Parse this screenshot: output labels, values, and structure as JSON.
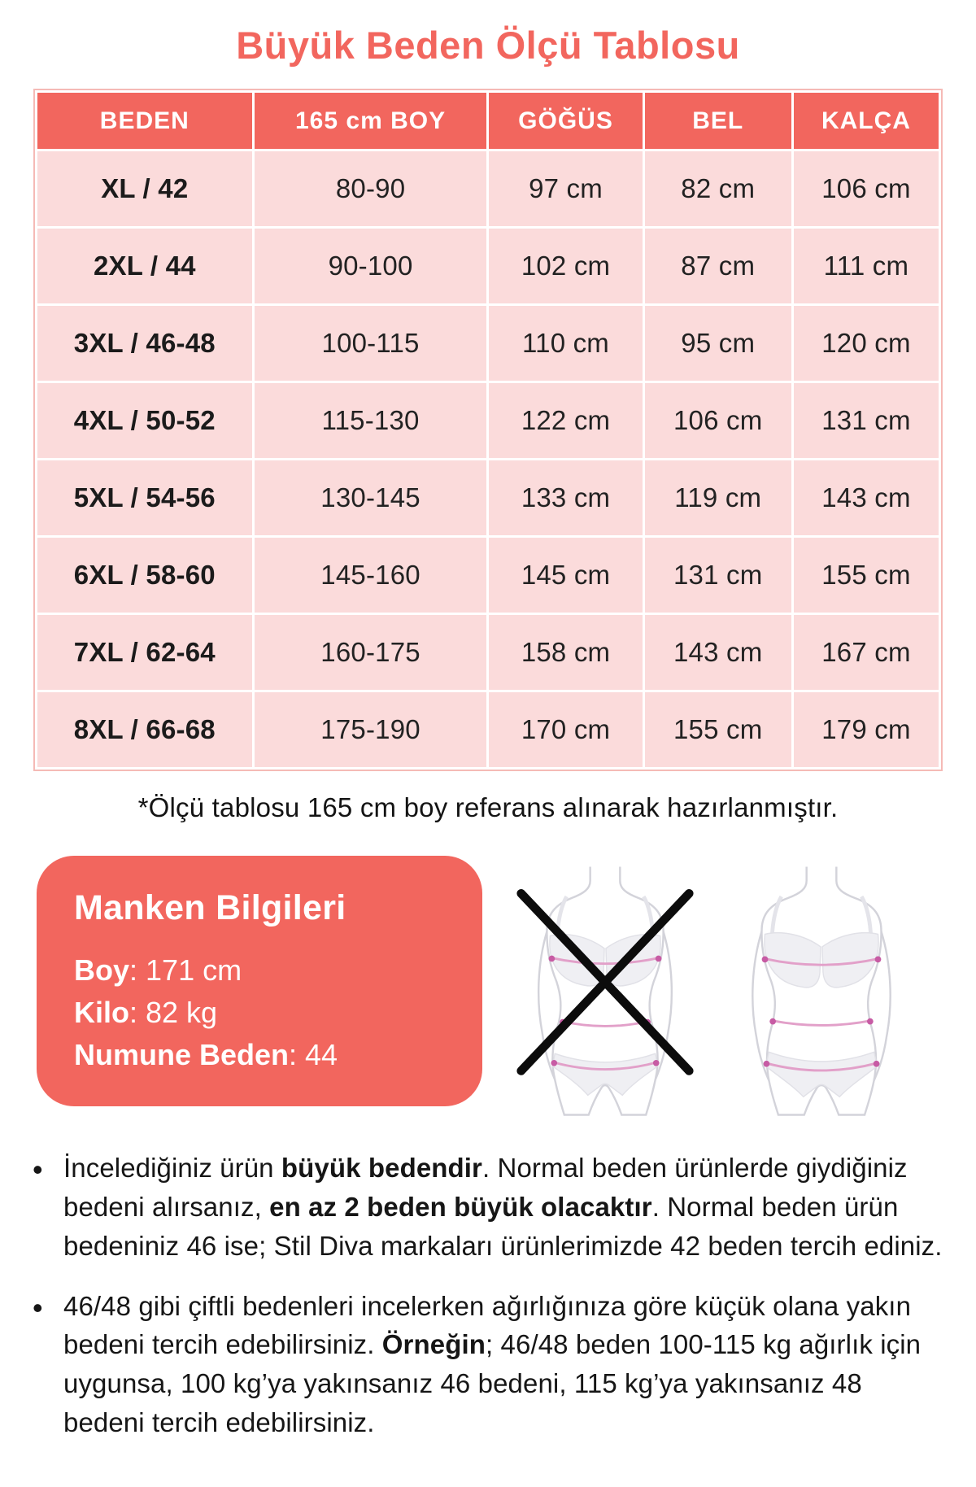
{
  "title": "Büyük Beden Ölçü Tablosu",
  "chart_data": {
    "type": "table",
    "title": "Büyük Beden Ölçü Tablosu",
    "columns": [
      "BEDEN",
      "165 cm BOY",
      "GÖĞÜS",
      "BEL",
      "KALÇA"
    ],
    "rows": [
      [
        "XL / 42",
        "80-90",
        "97 cm",
        "82 cm",
        "106 cm"
      ],
      [
        "2XL / 44",
        "90-100",
        "102 cm",
        "87 cm",
        "111 cm"
      ],
      [
        "3XL / 46-48",
        "100-115",
        "110 cm",
        "95 cm",
        "120 cm"
      ],
      [
        "4XL / 50-52",
        "115-130",
        "122 cm",
        "106 cm",
        "131 cm"
      ],
      [
        "5XL / 54-56",
        "130-145",
        "133 cm",
        "119 cm",
        "143 cm"
      ],
      [
        "6XL / 58-60",
        "145-160",
        "145 cm",
        "131 cm",
        "155 cm"
      ],
      [
        "7XL / 62-64",
        "160-175",
        "158 cm",
        "143 cm",
        "167 cm"
      ],
      [
        "8XL / 66-68",
        "175-190",
        "170 cm",
        "155 cm",
        "179 cm"
      ]
    ]
  },
  "footnote": "*Ölçü tablosu 165 cm boy referans alınarak hazırlanmıştır.",
  "model_info": {
    "title": "Manken Bilgileri",
    "rows": [
      {
        "label": "Boy",
        "value": ": 171 cm"
      },
      {
        "label": "Kilo",
        "value": ": 82 kg"
      },
      {
        "label": "Numune Beden",
        "value": ": 44"
      }
    ]
  },
  "icons": {
    "left_figure": "body-measure-crossed-icon",
    "right_figure": "body-measure-icon"
  },
  "colors": {
    "accent_coral": "#F2665E",
    "row_pink": "#FBDBDB",
    "table_grid_white": "#FFFFFF",
    "measure_line_pink": "#E2A0C9",
    "measure_dot_pink": "#C75BA4",
    "cross_black": "#0C0C0C",
    "text_dark": "#161616"
  },
  "notes": [
    {
      "segments": [
        {
          "text": "İncelediğiniz ürün ",
          "bold": false
        },
        {
          "text": "büyük bedendir",
          "bold": true
        },
        {
          "text": ". Normal beden ürünlerde giydiğiniz bedeni alırsanız, ",
          "bold": false
        },
        {
          "text": "en az 2 beden büyük olacaktır",
          "bold": true
        },
        {
          "text": ". Normal beden ürün bedeniniz 46 ise; Stil Diva markaları ürünlerimizde 42 beden tercih ediniz.",
          "bold": false
        }
      ]
    },
    {
      "segments": [
        {
          "text": "46/48 gibi çiftli bedenleri incelerken ağırlığınıza göre küçük olana yakın bedeni tercih edebilirsiniz. ",
          "bold": false
        },
        {
          "text": "Örneğin",
          "bold": true
        },
        {
          "text": "; 46/48 beden 100-115 kg ağırlık için uygunsa, 100 kg’ya yakınsanız 46 bedeni, 115 kg’ya yakınsanız 48 bedeni tercih edebilirsiniz.",
          "bold": false
        }
      ]
    }
  ]
}
